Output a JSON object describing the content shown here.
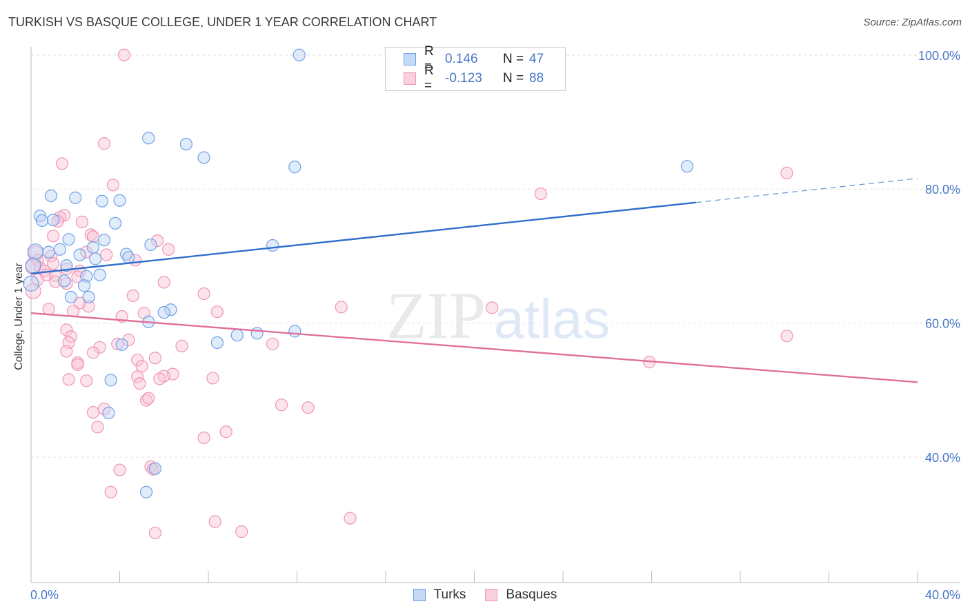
{
  "title": "TURKISH VS BASQUE COLLEGE, UNDER 1 YEAR CORRELATION CHART",
  "source": "Source: ZipAtlas.com",
  "watermark": {
    "zip": "ZIP",
    "atlas": "atlas"
  },
  "legend": [
    {
      "r_label": "R =",
      "r_value": "0.146",
      "n_label": "N =",
      "n_value": "47"
    },
    {
      "r_label": "R =",
      "r_value": "-0.123",
      "n_label": "N =",
      "n_value": "88"
    }
  ],
  "chart_data": {
    "type": "scatter",
    "title": "TURKISH VS BASQUE COLLEGE, UNDER 1 YEAR CORRELATION CHART",
    "xlabel": "",
    "ylabel": "College, Under 1 year",
    "xlim": [
      0,
      40
    ],
    "ylim": [
      21.3,
      100.8
    ],
    "x_tick_labels": [
      "0.0%",
      "40.0%"
    ],
    "y_ticks": [
      40,
      60,
      80,
      100
    ],
    "y_tick_labels": [
      "40.0%",
      "60.0%",
      "80.0%",
      "100.0%"
    ],
    "grid": true,
    "colors": {
      "turks": "#6fa0e8",
      "turks_line": "#2f6fcc",
      "basques": "#f094b4",
      "basques_line": "#e0709a",
      "axis_text": "#4a78c8"
    },
    "series": [
      {
        "name": "Turks",
        "trend": {
          "x": [
            0,
            30
          ],
          "y": [
            67.4,
            78.0
          ],
          "dashed_to": [
            40,
            81.6
          ]
        },
        "points": [
          [
            12.1,
            100.0
          ],
          [
            5.3,
            87.6
          ],
          [
            7.0,
            86.7
          ],
          [
            7.8,
            84.7
          ],
          [
            11.9,
            83.3
          ],
          [
            29.6,
            83.4
          ],
          [
            0.9,
            79.0
          ],
          [
            2.0,
            78.7
          ],
          [
            3.2,
            78.2
          ],
          [
            4.0,
            78.3
          ],
          [
            0.4,
            76.0
          ],
          [
            0.5,
            75.3
          ],
          [
            1.0,
            75.4
          ],
          [
            3.8,
            74.9
          ],
          [
            1.7,
            72.5
          ],
          [
            3.3,
            72.4
          ],
          [
            5.4,
            71.7
          ],
          [
            10.9,
            71.6
          ],
          [
            2.8,
            71.3
          ],
          [
            0.2,
            70.7
          ],
          [
            0.8,
            70.6
          ],
          [
            1.3,
            71.0
          ],
          [
            4.3,
            70.3
          ],
          [
            2.2,
            70.2
          ],
          [
            4.4,
            69.8
          ],
          [
            2.9,
            69.6
          ],
          [
            1.6,
            68.6
          ],
          [
            0.1,
            68.6
          ],
          [
            3.1,
            67.2
          ],
          [
            2.5,
            67.0
          ],
          [
            1.5,
            66.3
          ],
          [
            0.0,
            65.9
          ],
          [
            2.4,
            65.6
          ],
          [
            2.6,
            63.9
          ],
          [
            1.8,
            63.9
          ],
          [
            6.3,
            62.0
          ],
          [
            6.0,
            61.6
          ],
          [
            5.3,
            60.2
          ],
          [
            11.9,
            58.8
          ],
          [
            10.2,
            58.5
          ],
          [
            9.3,
            58.2
          ],
          [
            8.4,
            57.1
          ],
          [
            4.1,
            56.8
          ],
          [
            3.6,
            51.5
          ],
          [
            3.5,
            46.6
          ],
          [
            5.6,
            38.3
          ],
          [
            5.2,
            34.8
          ]
        ]
      },
      {
        "name": "Basques",
        "trend": {
          "x": [
            0,
            40
          ],
          "y": [
            61.5,
            51.2
          ]
        },
        "points": [
          [
            4.2,
            100.0
          ],
          [
            3.3,
            86.8
          ],
          [
            1.4,
            83.8
          ],
          [
            34.1,
            82.4
          ],
          [
            3.7,
            80.6
          ],
          [
            23.0,
            79.3
          ],
          [
            1.5,
            76.1
          ],
          [
            1.3,
            75.8
          ],
          [
            1.2,
            75.2
          ],
          [
            2.3,
            75.1
          ],
          [
            2.7,
            73.2
          ],
          [
            1.0,
            73.0
          ],
          [
            5.7,
            72.3
          ],
          [
            2.8,
            72.9
          ],
          [
            6.2,
            71.0
          ],
          [
            0.2,
            70.4
          ],
          [
            3.4,
            70.2
          ],
          [
            2.5,
            70.6
          ],
          [
            0.9,
            70.0
          ],
          [
            0.3,
            69.4
          ],
          [
            1.0,
            68.9
          ],
          [
            4.7,
            69.4
          ],
          [
            0.1,
            68.4
          ],
          [
            0.4,
            68.3
          ],
          [
            1.6,
            68.1
          ],
          [
            0.6,
            67.8
          ],
          [
            2.2,
            67.8
          ],
          [
            0.7,
            67.2
          ],
          [
            1.1,
            67.1
          ],
          [
            2.1,
            66.9
          ],
          [
            1.1,
            66.2
          ],
          [
            1.6,
            65.9
          ],
          [
            6.0,
            66.1
          ],
          [
            7.8,
            64.4
          ],
          [
            4.6,
            64.1
          ],
          [
            2.2,
            63.0
          ],
          [
            2.6,
            62.5
          ],
          [
            14.0,
            62.4
          ],
          [
            20.8,
            62.3
          ],
          [
            0.8,
            62.1
          ],
          [
            1.9,
            61.8
          ],
          [
            8.4,
            61.7
          ],
          [
            5.1,
            61.5
          ],
          [
            4.1,
            61.0
          ],
          [
            1.6,
            59.0
          ],
          [
            34.1,
            58.1
          ],
          [
            1.8,
            58.0
          ],
          [
            4.4,
            57.5
          ],
          [
            1.7,
            57.1
          ],
          [
            3.9,
            56.9
          ],
          [
            10.9,
            56.9
          ],
          [
            6.8,
            56.6
          ],
          [
            3.1,
            56.4
          ],
          [
            1.6,
            55.8
          ],
          [
            2.8,
            55.6
          ],
          [
            5.6,
            54.8
          ],
          [
            4.8,
            54.5
          ],
          [
            27.9,
            54.2
          ],
          [
            2.1,
            54.1
          ],
          [
            2.1,
            53.8
          ],
          [
            5.0,
            53.6
          ],
          [
            6.4,
            52.4
          ],
          [
            4.8,
            52.0
          ],
          [
            6.0,
            52.1
          ],
          [
            5.8,
            51.7
          ],
          [
            8.2,
            51.8
          ],
          [
            1.7,
            51.6
          ],
          [
            2.5,
            51.4
          ],
          [
            4.9,
            51.0
          ],
          [
            5.2,
            48.5
          ],
          [
            5.3,
            48.8
          ],
          [
            11.3,
            47.8
          ],
          [
            12.5,
            47.4
          ],
          [
            3.3,
            47.2
          ],
          [
            2.8,
            46.7
          ],
          [
            3.0,
            44.5
          ],
          [
            8.8,
            43.8
          ],
          [
            7.8,
            42.9
          ],
          [
            5.4,
            38.6
          ],
          [
            5.5,
            38.2
          ],
          [
            4.0,
            38.1
          ],
          [
            3.6,
            34.8
          ],
          [
            14.4,
            30.9
          ],
          [
            8.3,
            30.4
          ],
          [
            9.5,
            28.9
          ],
          [
            5.6,
            28.7
          ],
          [
            0.1,
            64.8
          ],
          [
            0.3,
            66.5
          ]
        ]
      }
    ]
  }
}
